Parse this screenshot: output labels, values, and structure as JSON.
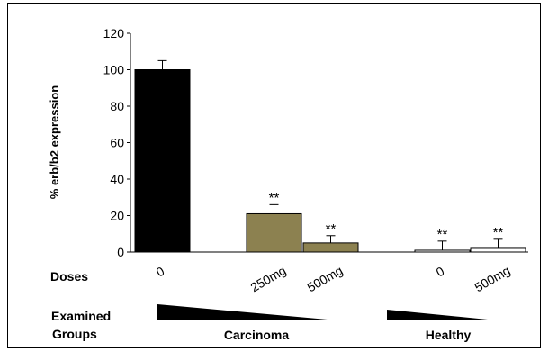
{
  "chart_data": {
    "type": "bar",
    "ylabel": "% erb/b2 expression",
    "ylim": [
      0,
      120
    ],
    "yticks": [
      0,
      20,
      40,
      60,
      80,
      100,
      120
    ],
    "bars": [
      {
        "group": "Carcinoma",
        "dose": "0",
        "value": 100,
        "error": 5,
        "significance": "",
        "color": "#000000"
      },
      {
        "group": "Carcinoma",
        "dose": "250mg",
        "value": 21,
        "error": 5,
        "significance": "**",
        "color": "#8c8150"
      },
      {
        "group": "Carcinoma",
        "dose": "500mg",
        "value": 5,
        "error": 4,
        "significance": "**",
        "color": "#8c8150"
      },
      {
        "group": "Healthy",
        "dose": "0",
        "value": 1,
        "error": 5,
        "significance": "**",
        "color": "#ffffff"
      },
      {
        "group": "Healthy",
        "dose": "500mg",
        "value": 2,
        "error": 5,
        "significance": "**",
        "color": "#ffffff"
      }
    ],
    "doses_label": "Doses",
    "examined_groups_label": [
      "Examined",
      "Groups"
    ],
    "groups": [
      "Carcinoma",
      "Healthy"
    ]
  }
}
